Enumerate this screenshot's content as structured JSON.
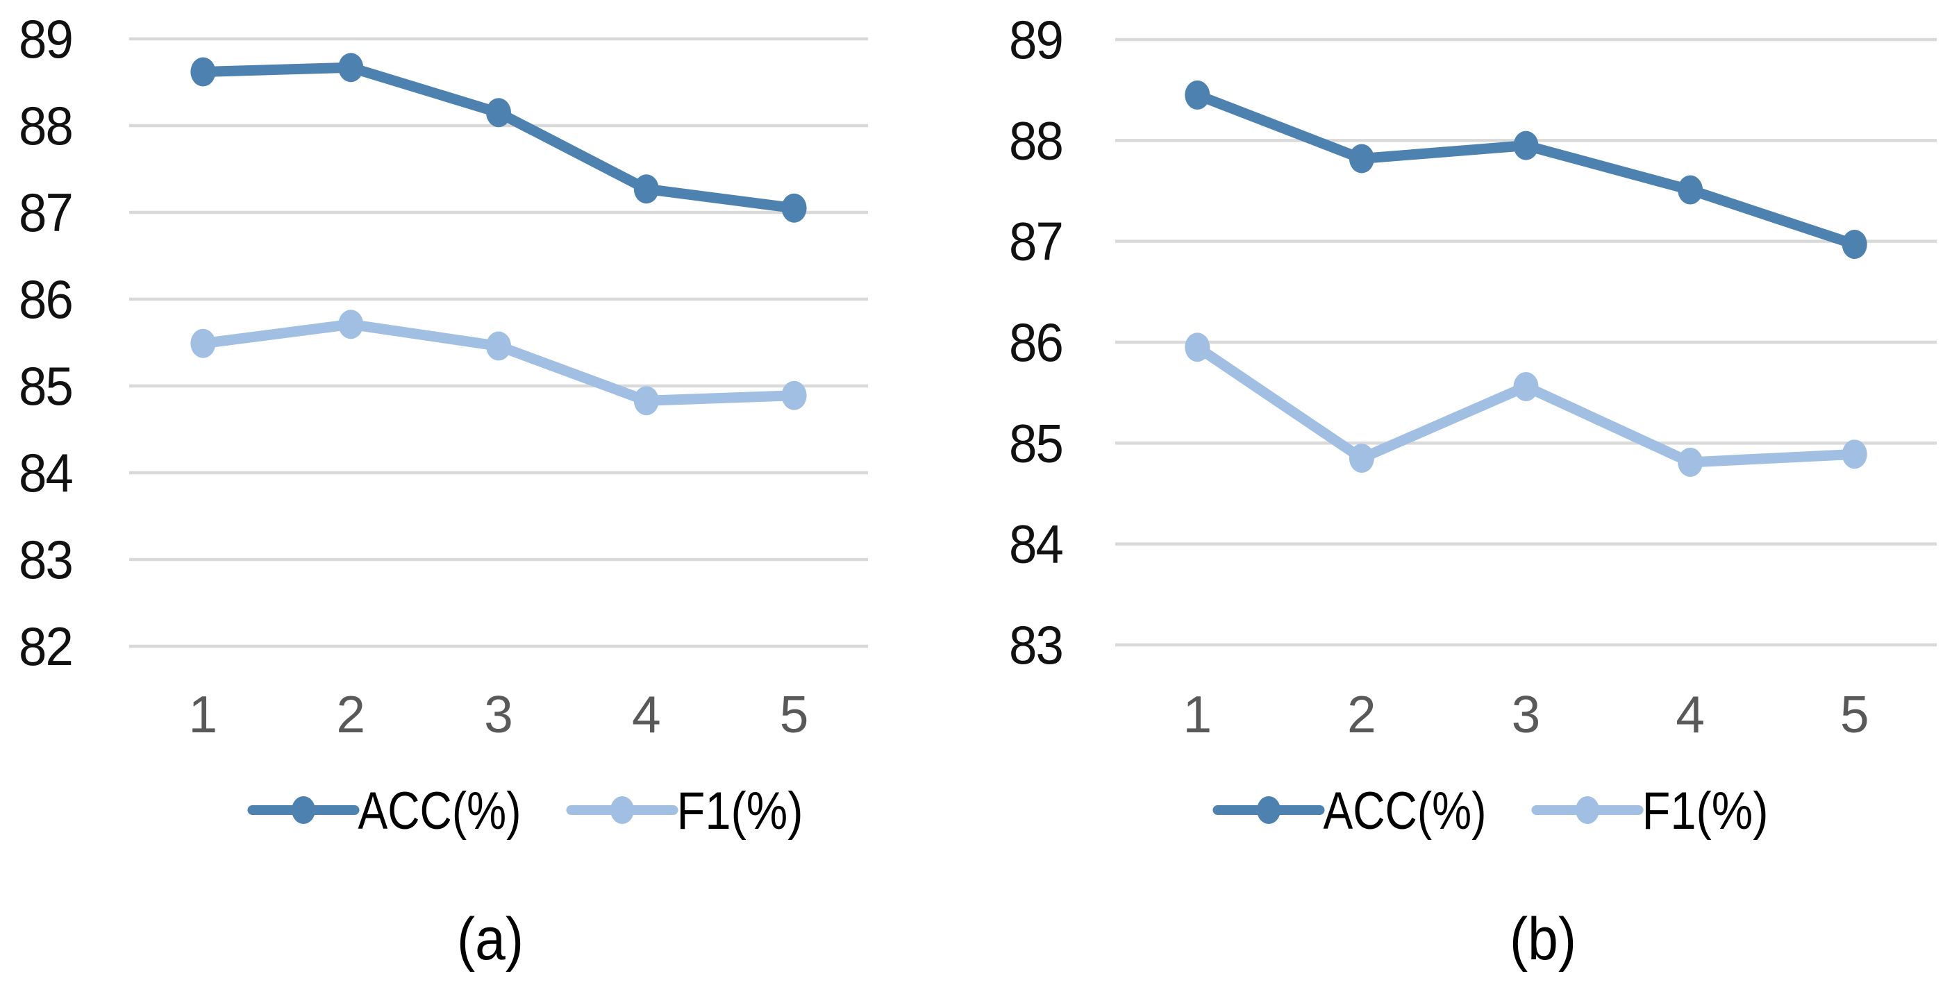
{
  "figure": {
    "background": "#ffffff"
  },
  "colors": {
    "acc_series": "#4D81B0",
    "f1_series": "#A0BFE2",
    "gridline": "#D9D9D9",
    "y_tick_label": "#111111",
    "x_tick_label": "#595959",
    "legend_text": "#000000",
    "caption_text": "#000000"
  },
  "chart_data": [
    {
      "id": "a",
      "type": "line",
      "caption": "(a)",
      "grid": "horizontal",
      "legend_position": "bottom",
      "categories": [
        "1",
        "2",
        "3",
        "4",
        "5"
      ],
      "y_axis": {
        "min": 82,
        "max": 89,
        "tick_step": 1,
        "tick_labels": [
          "89",
          "88",
          "87",
          "86",
          "85",
          "84",
          "83",
          "82"
        ]
      },
      "series": [
        {
          "name": "ACC(%)",
          "color_key": "acc_series",
          "values": [
            88.62,
            88.67,
            88.15,
            87.27,
            87.05
          ]
        },
        {
          "name": "F1(%)",
          "color_key": "f1_series",
          "values": [
            85.49,
            85.71,
            85.46,
            84.83,
            84.89
          ]
        }
      ]
    },
    {
      "id": "b",
      "type": "line",
      "caption": "(b)",
      "grid": "horizontal",
      "legend_position": "bottom",
      "categories": [
        "1",
        "2",
        "3",
        "4",
        "5"
      ],
      "y_axis": {
        "min": 83,
        "max": 89,
        "tick_step": 1,
        "tick_labels": [
          "89",
          "88",
          "87",
          "86",
          "85",
          "84",
          "83"
        ]
      },
      "series": [
        {
          "name": "ACC(%)",
          "color_key": "acc_series",
          "values": [
            88.45,
            87.82,
            87.95,
            87.51,
            86.97
          ]
        },
        {
          "name": "F1(%)",
          "color_key": "f1_series",
          "values": [
            85.95,
            84.85,
            85.56,
            84.81,
            84.89
          ]
        }
      ]
    }
  ]
}
